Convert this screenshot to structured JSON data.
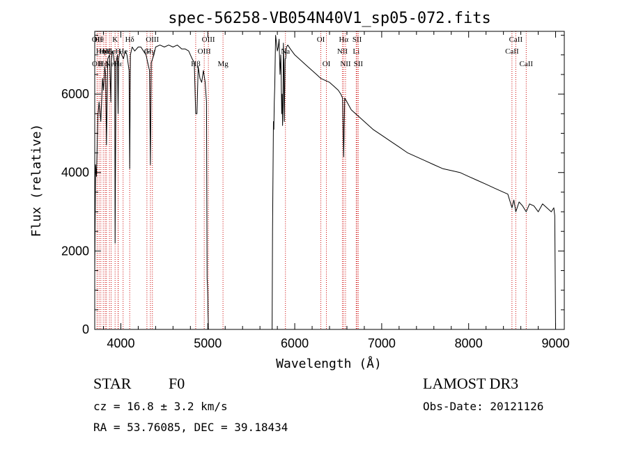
{
  "chart_data": {
    "type": "line",
    "title": "spec-56258-VB054N40V1_sp05-072.fits",
    "xlabel": "Wavelength (Å)",
    "ylabel": "Flux (relative)",
    "xlim": [
      3700,
      9100
    ],
    "ylim": [
      0,
      7600
    ],
    "xticks": [
      4000,
      5000,
      6000,
      7000,
      8000,
      9000
    ],
    "yticks": [
      0,
      2000,
      4000,
      6000
    ],
    "x_tick_labels": [
      "4000",
      "5000",
      "6000",
      "7000",
      "8000",
      "9000"
    ],
    "y_tick_labels": [
      "0",
      "2000",
      "4000",
      "6000"
    ],
    "series": [
      {
        "name": "spectrum",
        "x": [
          3700,
          3710,
          3720,
          3735,
          3750,
          3770,
          3790,
          3800,
          3815,
          3825,
          3835,
          3850,
          3870,
          3885,
          3890,
          3900,
          3915,
          3930,
          3934,
          3945,
          3960,
          3968,
          3975,
          3990,
          4010,
          4030,
          4050,
          4070,
          4095,
          4102,
          4110,
          4130,
          4160,
          4200,
          4230,
          4260,
          4290,
          4310,
          4330,
          4340,
          4350,
          4380,
          4400,
          4450,
          4500,
          4550,
          4600,
          4650,
          4700,
          4740,
          4780,
          4800,
          4820,
          4845,
          4861,
          4875,
          4890,
          4910,
          4930,
          4950,
          4970,
          4985,
          4992,
          4997,
          5000,
          5003,
          5005,
          5006,
          5007,
          5740,
          5745,
          5755,
          5760,
          5765,
          5770,
          5780,
          5790,
          5800,
          5810,
          5820,
          5830,
          5840,
          5850,
          5855,
          5860,
          5865,
          5870,
          5875,
          5880,
          5890,
          5896,
          5905,
          5920,
          5950,
          6000,
          6050,
          6100,
          6150,
          6200,
          6250,
          6300,
          6350,
          6400,
          6450,
          6500,
          6530,
          6550,
          6563,
          6575,
          6600,
          6650,
          6700,
          6750,
          6800,
          6900,
          7000,
          7100,
          7200,
          7300,
          7400,
          7500,
          7600,
          7700,
          7800,
          7900,
          8000,
          8100,
          8200,
          8300,
          8400,
          8450,
          8498,
          8520,
          8542,
          8580,
          8620,
          8662,
          8700,
          8750,
          8800,
          8850,
          8900,
          8950,
          8980,
          8990,
          8995,
          9000
        ],
        "y": [
          1500,
          4200,
          3900,
          5400,
          5800,
          5300,
          6400,
          6100,
          6700,
          6500,
          4700,
          6900,
          7000,
          5800,
          6800,
          7100,
          7000,
          6700,
          2200,
          6800,
          7000,
          5500,
          6900,
          7100,
          7000,
          6900,
          7100,
          7000,
          6600,
          4100,
          7000,
          7200,
          7100,
          7200,
          7200,
          7100,
          7000,
          6800,
          6600,
          4200,
          6800,
          7000,
          7200,
          7250,
          7200,
          7250,
          7200,
          7250,
          7150,
          7150,
          7100,
          7000,
          6900,
          6800,
          5500,
          5500,
          6700,
          6400,
          6300,
          6600,
          6300,
          5800,
          1300,
          1100,
          800,
          400,
          200,
          50,
          0,
          0,
          2500,
          5300,
          5100,
          5800,
          6200,
          7500,
          7300,
          7100,
          7200,
          7400,
          6500,
          7000,
          5500,
          6000,
          5200,
          5700,
          7300,
          6800,
          5300,
          6900,
          6900,
          7200,
          7250,
          7150,
          7000,
          6900,
          6800,
          6700,
          6600,
          6500,
          6400,
          6350,
          6300,
          6200,
          6100,
          6000,
          5900,
          4400,
          5900,
          5800,
          5600,
          5500,
          5400,
          5300,
          5100,
          4950,
          4800,
          4650,
          4500,
          4400,
          4300,
          4200,
          4100,
          4050,
          4000,
          3900,
          3800,
          3700,
          3600,
          3500,
          3450,
          3100,
          3300,
          3000,
          3250,
          3150,
          3000,
          3200,
          3150,
          3000,
          3200,
          3100,
          3000,
          3100,
          2900,
          1500,
          0
        ]
      }
    ],
    "line_markers": [
      {
        "x": 3727,
        "row": 0,
        "label": "OII"
      },
      {
        "x": 3729,
        "row": 2,
        "label": "OII"
      },
      {
        "x": 3750,
        "row": 0,
        "label": "Hθ"
      },
      {
        "x": 3770,
        "row": 1,
        "label": "Hη"
      },
      {
        "x": 3798,
        "row": 2,
        "label": "Hη"
      },
      {
        "x": 3820,
        "row": 1,
        "label": "HeI"
      },
      {
        "x": 3835,
        "row": 1,
        "label": "Hζ"
      },
      {
        "x": 3869,
        "row": 2,
        "label": "Ne"
      },
      {
        "x": 3889,
        "row": 1,
        "label": "He"
      },
      {
        "x": 3934,
        "row": 0,
        "label": "K"
      },
      {
        "x": 3968,
        "row": 1,
        "label": "H"
      },
      {
        "x": 3970,
        "row": 2,
        "label": "Hε"
      },
      {
        "x": 4026,
        "row": 1,
        "label": "He"
      },
      {
        "x": 4102,
        "row": 0,
        "label": "Hδ"
      },
      {
        "x": 4300,
        "row": 1,
        "label": "G"
      },
      {
        "x": 4340,
        "row": 1,
        "label": "Hγ"
      },
      {
        "x": 4363,
        "row": 0,
        "label": "OIII"
      },
      {
        "x": 4861,
        "row": 2,
        "label": "Hβ"
      },
      {
        "x": 4959,
        "row": 1,
        "label": "OIII"
      },
      {
        "x": 5007,
        "row": 0,
        "label": "OIII"
      },
      {
        "x": 5175,
        "row": 2,
        "label": "Mg"
      },
      {
        "x": 5893,
        "row": 1,
        "label": "Na"
      },
      {
        "x": 6300,
        "row": 0,
        "label": "OI"
      },
      {
        "x": 6364,
        "row": 2,
        "label": "OI"
      },
      {
        "x": 6548,
        "row": 1,
        "label": "NII"
      },
      {
        "x": 6563,
        "row": 0,
        "label": "Hα"
      },
      {
        "x": 6584,
        "row": 2,
        "label": "NII"
      },
      {
        "x": 6707,
        "row": 1,
        "label": "Li"
      },
      {
        "x": 6717,
        "row": 0,
        "label": "SII"
      },
      {
        "x": 6731,
        "row": 2,
        "label": "SII"
      },
      {
        "x": 8498,
        "row": 1,
        "label": "CaII"
      },
      {
        "x": 8542,
        "row": 0,
        "label": "CaII"
      },
      {
        "x": 8662,
        "row": 2,
        "label": "CaII"
      }
    ]
  },
  "info": {
    "class_label": "STAR",
    "subclass": "F0",
    "survey": "LAMOST DR3",
    "cz": "cz = 16.8 ± 3.2 km/s",
    "obs_date": "Obs-Date: 20121126",
    "coords": "RA =  53.76085, DEC =  39.18434"
  }
}
